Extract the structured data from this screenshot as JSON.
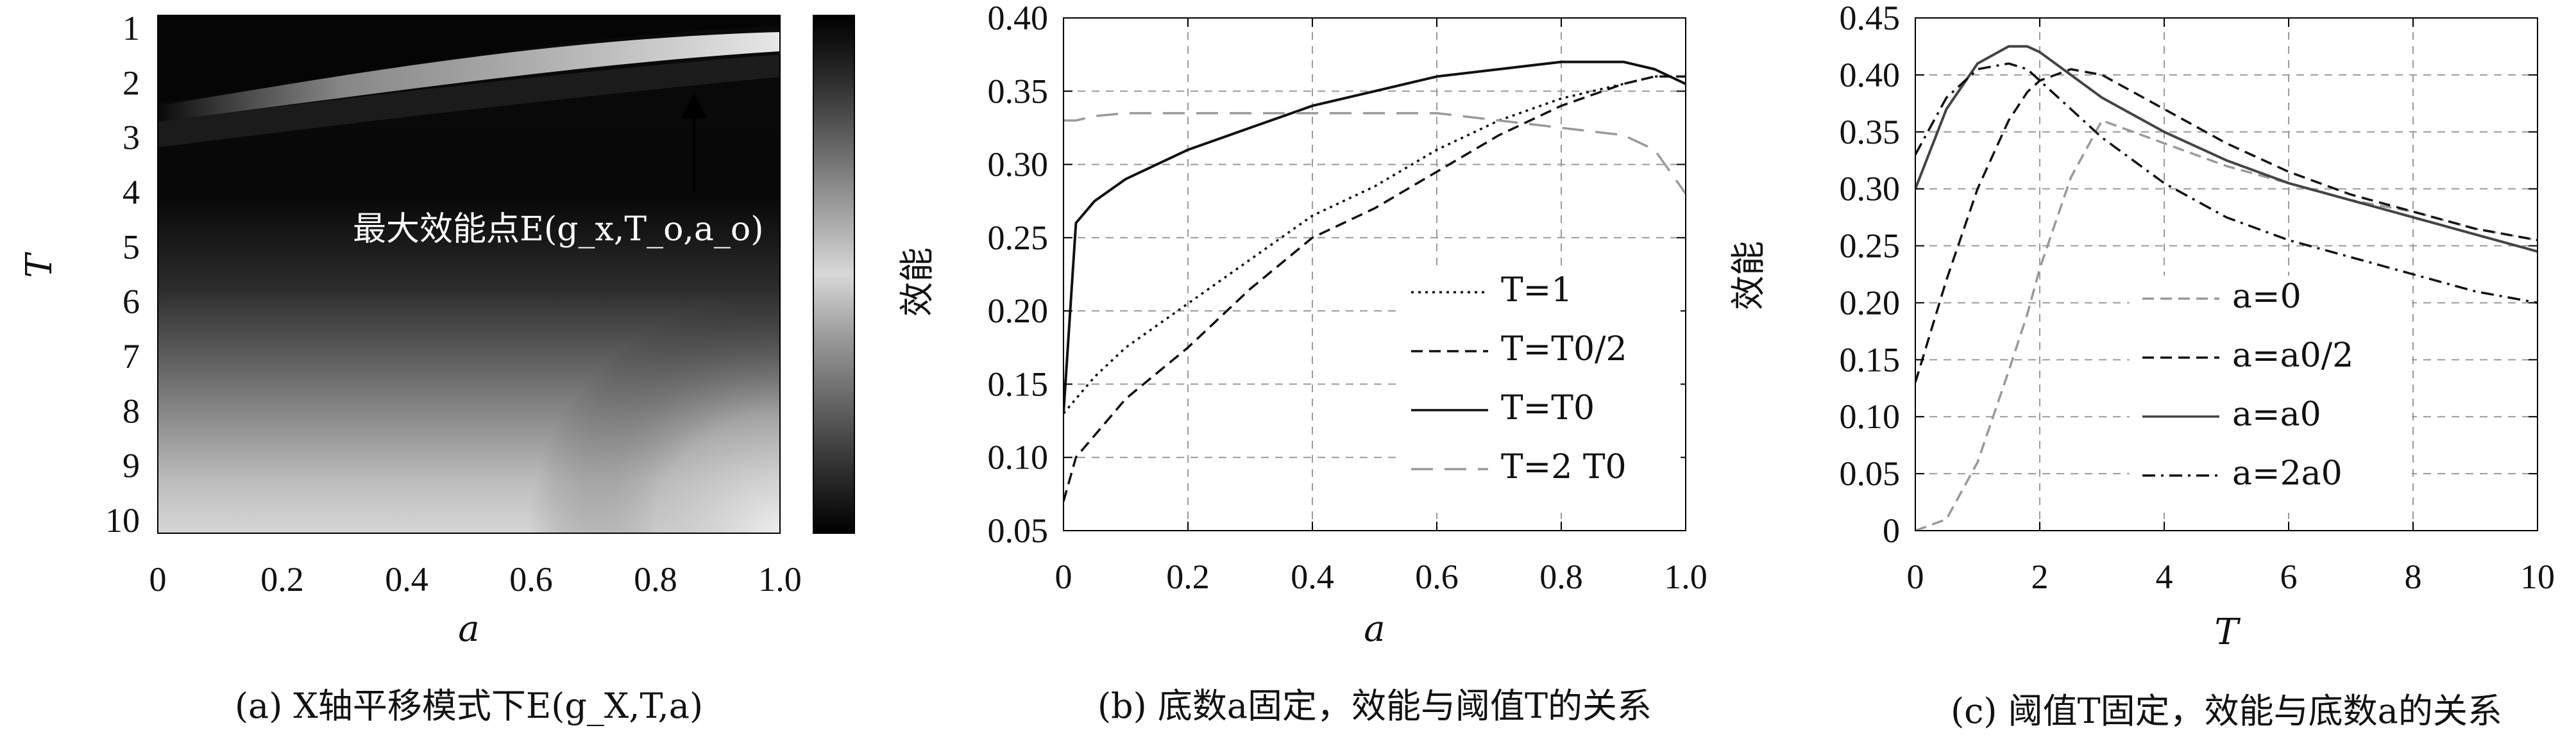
{
  "panel_a": {
    "caption": "(a) X轴平移模式下E(g_X,T,a)",
    "xlabel": "a",
    "ylabel": "T",
    "xticks": [
      "0",
      "0.2",
      "0.4",
      "0.6",
      "0.8",
      "1.0"
    ],
    "yticks": [
      "1",
      "2",
      "3",
      "4",
      "5",
      "6",
      "7",
      "8",
      "9",
      "10"
    ],
    "annotation": "最大效能点E(g_x,T_o,a_o)"
  },
  "panel_b": {
    "caption": "(b) 底数a固定，效能与阈值T的关系",
    "xlabel": "a",
    "ylabel": "效能",
    "xticks": [
      "0",
      "0.2",
      "0.4",
      "0.6",
      "0.8",
      "1.0"
    ],
    "yticks": [
      "0.05",
      "0.10",
      "0.15",
      "0.20",
      "0.25",
      "0.30",
      "0.35",
      "0.40"
    ],
    "legend": [
      "T=1",
      "T=T0/2",
      "T=T0",
      "T=2 T0"
    ]
  },
  "panel_c": {
    "caption": "(c) 阈值T固定，效能与底数a的关系",
    "xlabel": "T",
    "ylabel": "效能",
    "xticks": [
      "0",
      "2",
      "4",
      "6",
      "8",
      "10"
    ],
    "yticks": [
      "0",
      "0.05",
      "0.10",
      "0.15",
      "0.20",
      "0.25",
      "0.30",
      "0.35",
      "0.40",
      "0.45"
    ],
    "legend": [
      "a=0",
      "a=a0/2",
      "a=a0",
      "a=2a0"
    ]
  },
  "chart_data": [
    {
      "type": "heatmap",
      "title": "(a) X轴平移模式下E(g_X,T,a)",
      "xlabel": "a",
      "ylabel": "T",
      "xlim": [
        0,
        1.0
      ],
      "ylim": [
        1,
        10
      ],
      "colormap": "dark = high efficiency, light = low efficiency",
      "annotation": {
        "text": "最大效能点E(g_x,T_o,a_o)",
        "a": 0.87,
        "T": 1.6
      }
    },
    {
      "type": "line",
      "title": "(b) 底数a固定，效能与阈值T的关系",
      "xlabel": "a",
      "ylabel": "效能",
      "xlim": [
        0,
        1.0
      ],
      "ylim": [
        0.05,
        0.4
      ],
      "grid": true,
      "legend_position": "bottom-right",
      "x": [
        0,
        0.02,
        0.05,
        0.1,
        0.2,
        0.3,
        0.4,
        0.5,
        0.6,
        0.7,
        0.8,
        0.9,
        0.95,
        1.0
      ],
      "series": [
        {
          "name": "T=1",
          "style": "dotted",
          "color": "#111111",
          "values": [
            0.13,
            0.14,
            0.155,
            0.175,
            0.205,
            0.235,
            0.265,
            0.285,
            0.31,
            0.33,
            0.345,
            0.355,
            0.36,
            0.36
          ]
        },
        {
          "name": "T=T0/2",
          "style": "dashed",
          "color": "#111111",
          "values": [
            0.07,
            0.1,
            0.115,
            0.14,
            0.175,
            0.215,
            0.25,
            0.27,
            0.295,
            0.32,
            0.34,
            0.355,
            0.36,
            0.36
          ]
        },
        {
          "name": "T=T0",
          "style": "solid",
          "color": "#111111",
          "values": [
            0.13,
            0.26,
            0.275,
            0.29,
            0.31,
            0.325,
            0.34,
            0.35,
            0.36,
            0.365,
            0.37,
            0.37,
            0.365,
            0.355
          ]
        },
        {
          "name": "T=2 T0",
          "style": "longdash",
          "color": "#999999",
          "values": [
            0.33,
            0.33,
            0.333,
            0.335,
            0.335,
            0.335,
            0.335,
            0.335,
            0.335,
            0.33,
            0.325,
            0.32,
            0.31,
            0.28
          ]
        }
      ]
    },
    {
      "type": "line",
      "title": "(c) 阈值T固定，效能与底数a的关系",
      "xlabel": "T",
      "ylabel": "效能",
      "xlim": [
        0,
        10
      ],
      "ylim": [
        0,
        0.45
      ],
      "grid": true,
      "legend_position": "bottom-center",
      "x": [
        0,
        0.5,
        1,
        1.5,
        1.8,
        2,
        2.5,
        3,
        4,
        5,
        6,
        7,
        8,
        9,
        10
      ],
      "series": [
        {
          "name": "a=0",
          "style": "dashed",
          "color": "#999999",
          "values": [
            0,
            0.01,
            0.06,
            0.14,
            0.19,
            0.23,
            0.31,
            0.36,
            0.34,
            0.32,
            0.305,
            0.29,
            0.28,
            0.265,
            0.255
          ]
        },
        {
          "name": "a=a0/2",
          "style": "dashed",
          "color": "#111111",
          "values": [
            0.13,
            0.22,
            0.3,
            0.36,
            0.385,
            0.395,
            0.405,
            0.4,
            0.37,
            0.34,
            0.315,
            0.295,
            0.28,
            0.265,
            0.255
          ]
        },
        {
          "name": "a=a0",
          "style": "solid",
          "color": "#444444",
          "values": [
            0.3,
            0.37,
            0.41,
            0.425,
            0.425,
            0.42,
            0.4,
            0.38,
            0.35,
            0.325,
            0.305,
            0.29,
            0.275,
            0.26,
            0.245
          ]
        },
        {
          "name": "a=2a0",
          "style": "dashdot",
          "color": "#111111",
          "values": [
            0.33,
            0.38,
            0.405,
            0.41,
            0.405,
            0.395,
            0.37,
            0.345,
            0.305,
            0.275,
            0.255,
            0.24,
            0.225,
            0.21,
            0.2
          ]
        }
      ]
    }
  ]
}
